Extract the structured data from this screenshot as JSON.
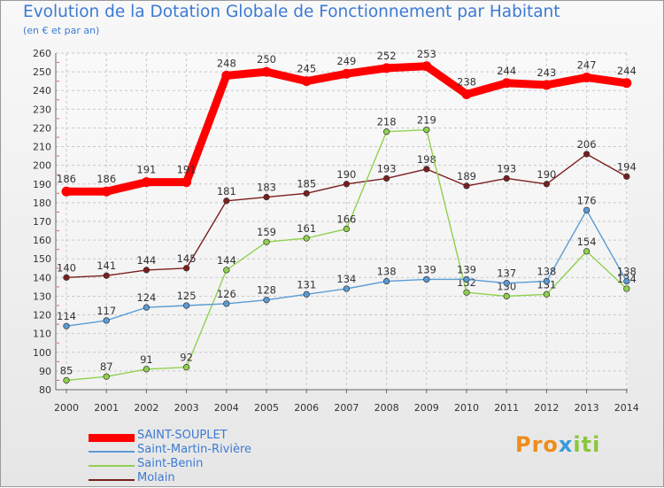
{
  "chart_data": {
    "type": "line",
    "title": "Evolution de la Dotation Globale de Fonctionnement par Habitant",
    "subtitle": "(en € et par an)",
    "xlabel": "",
    "ylabel": "",
    "categories": [
      "2000",
      "2001",
      "2002",
      "2003",
      "2004",
      "2005",
      "2006",
      "2007",
      "2008",
      "2009",
      "2010",
      "2011",
      "2012",
      "2013",
      "2014"
    ],
    "ylim": [
      80,
      260
    ],
    "yticks": [
      80,
      90,
      100,
      110,
      120,
      130,
      140,
      150,
      160,
      170,
      180,
      190,
      200,
      210,
      220,
      230,
      240,
      250,
      260
    ],
    "grid": true,
    "legend_position": "bottom-left",
    "series": [
      {
        "name": "Molain",
        "color": "#7a1f1f",
        "values": [
          140,
          141,
          144,
          145,
          181,
          183,
          185,
          190,
          193,
          198,
          189,
          193,
          190,
          206,
          194
        ]
      },
      {
        "name": "Saint-Benin",
        "color": "#8fd14f",
        "values": [
          85,
          87,
          91,
          92,
          144,
          159,
          161,
          166,
          218,
          219,
          132,
          130,
          131,
          154,
          134
        ]
      },
      {
        "name": "Saint-Martin-Rivière",
        "color": "#5b9bd5",
        "values": [
          114,
          117,
          124,
          125,
          126,
          128,
          131,
          134,
          138,
          139,
          139,
          137,
          138,
          176,
          138
        ]
      },
      {
        "name": "SAINT-SOUPLET",
        "color": "#ff0000",
        "values": [
          186,
          186,
          191,
          191,
          248,
          250,
          245,
          249,
          252,
          253,
          238,
          244,
          243,
          247,
          244
        ]
      }
    ],
    "legend_order": [
      "SAINT-SOUPLET",
      "Saint-Martin-Rivière",
      "Saint-Benin",
      "Molain"
    ]
  },
  "logo_text": "Proxiti"
}
